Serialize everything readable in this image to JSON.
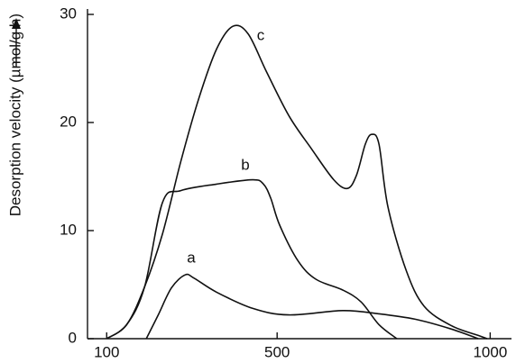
{
  "chart_data": {
    "type": "line",
    "y_label": "Desorption velocity (µmol/g h)",
    "xlim": [
      55,
      1050
    ],
    "ylim": [
      0,
      30.5
    ],
    "xticks": [
      100,
      500,
      1000
    ],
    "yticks": [
      0,
      10,
      20,
      30
    ],
    "series": [
      {
        "name": "a",
        "color": "#111111",
        "x": [
          193,
          221,
          252,
          284,
          305,
          358,
          443,
          527,
          654,
          739,
          824,
          908,
          972
        ],
        "values": [
          0,
          2.2,
          4.7,
          5.9,
          5.6,
          4.3,
          2.8,
          2.2,
          2.6,
          2.3,
          1.8,
          0.9,
          0
        ]
      },
      {
        "name": "b",
        "color": "#111111",
        "x": [
          100,
          147,
          189,
          231,
          274,
          358,
          443,
          468,
          485,
          506,
          549,
          591,
          654,
          697,
          739,
          781
        ],
        "values": [
          0,
          1.3,
          4.8,
          12.6,
          13.7,
          14.3,
          14.7,
          14.3,
          13,
          10.5,
          7.2,
          5.5,
          4.5,
          3.4,
          1.3,
          0
        ]
      },
      {
        "name": "c",
        "color": "#111111",
        "x": [
          100,
          147,
          189,
          231,
          274,
          316,
          358,
          396,
          432,
          475,
          528,
          580,
          633,
          665,
          686,
          707,
          722,
          739,
          760,
          803,
          845,
          909,
          972,
          993
        ],
        "values": [
          0,
          1.3,
          4.8,
          9.7,
          16.4,
          22.2,
          26.8,
          28.9,
          28.2,
          24.7,
          20.6,
          17.6,
          14.7,
          13.9,
          15.1,
          18,
          18.9,
          18,
          12.2,
          6.3,
          3,
          1.2,
          0.3,
          0
        ]
      }
    ]
  }
}
